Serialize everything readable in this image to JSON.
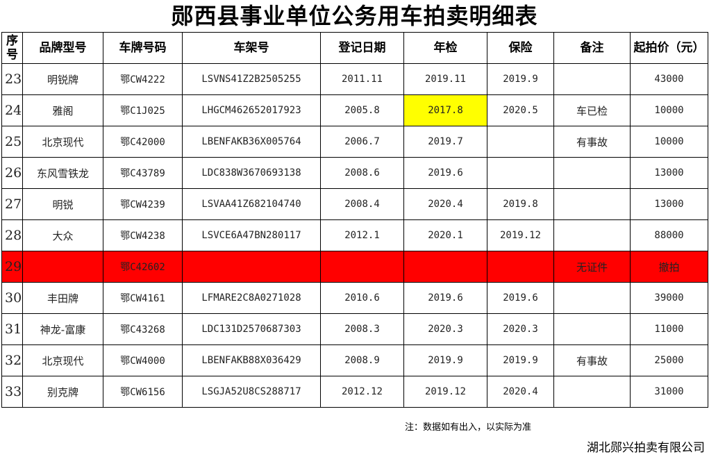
{
  "title": "郧西县事业单位公务用车拍卖明细表",
  "headers": [
    "序号",
    "品牌型号",
    "车牌号码",
    "车架号",
    "登记日期",
    "年检",
    "保险",
    "备注",
    "起拍价（元）"
  ],
  "rows": [
    {
      "no": "23",
      "brand": "明锐牌",
      "plate": "鄂CW4222",
      "vin": "LSVNS41Z2B2505255",
      "reg": "2011.11",
      "inspect": "2019.11",
      "insure": "2019.9",
      "remark": "",
      "price": "43000"
    },
    {
      "no": "24",
      "brand": "雅阁",
      "plate": "鄂C1J025",
      "vin": "LHGCM462652017923",
      "reg": "2005.8",
      "inspect": "2017.8",
      "insure": "2020.5",
      "remark": "车已检",
      "price": "10000",
      "highlight": "#ffff00"
    },
    {
      "no": "25",
      "brand": "北京现代",
      "plate": "鄂C42000",
      "vin": "LBENFAKB36X005764",
      "reg": "2006.7",
      "inspect": "2019.7",
      "insure": "",
      "remark": "有事故",
      "price": "10000"
    },
    {
      "no": "26",
      "brand": "东风雪铁龙",
      "plate": "鄂C43789",
      "vin": "LDC838W3670693138",
      "reg": "2008.6",
      "inspect": "2019.6",
      "insure": "",
      "remark": "",
      "price": "13000"
    },
    {
      "no": "27",
      "brand": "明锐",
      "plate": "鄂CW4239",
      "vin": "LSVAA41Z682104740",
      "reg": "2008.4",
      "inspect": "2020.4",
      "insure": "2019.8",
      "remark": "",
      "price": "13000"
    },
    {
      "no": "28",
      "brand": "大众",
      "plate": "鄂CW4238",
      "vin": "LSVCE6A47BN280117",
      "reg": "2012.1",
      "inspect": "2020.1",
      "insure": "2019.12",
      "remark": "",
      "price": "88000"
    },
    {
      "no": "29",
      "brand": "",
      "plate": "鄂C42602",
      "vin": "",
      "reg": "",
      "inspect": "",
      "insure": "",
      "remark": "无证件",
      "price": "撤拍",
      "row_color": "#ff0000"
    },
    {
      "no": "30",
      "brand": "丰田牌",
      "plate": "鄂CW4161",
      "vin": "LFMARE2C8A0271028",
      "reg": "2010.6",
      "inspect": "2019.6",
      "insure": "2019.6",
      "remark": "",
      "price": "39000"
    },
    {
      "no": "31",
      "brand": "神龙-富康",
      "plate": "鄂C43268",
      "vin": "LDC131D2570687303",
      "reg": "2008.3",
      "inspect": "2020.3",
      "insure": "2020.3",
      "remark": "",
      "price": "11000"
    },
    {
      "no": "32",
      "brand": "北京现代",
      "plate": "鄂CW4000",
      "vin": "LBENFAKB88X036429",
      "reg": "2008.9",
      "inspect": "2019.9",
      "insure": "2019.9",
      "remark": "有事故",
      "price": "25000"
    },
    {
      "no": "33",
      "brand": "别克牌",
      "plate": "鄂CW6156",
      "vin": "LSGJA52U8CS288717",
      "reg": "2012.12",
      "inspect": "2019.12",
      "insure": "2020.4",
      "remark": "",
      "price": "31000"
    }
  ],
  "note": "注：数据如有出入，以实际为准",
  "company": "湖北郧兴拍卖有限公司"
}
